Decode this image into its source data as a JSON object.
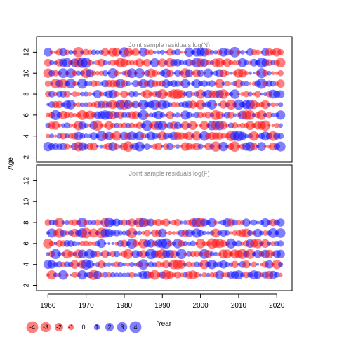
{
  "chart_data": {
    "type": "scatter",
    "subtype": "bubble-residuals",
    "xlabel": "Year",
    "ylabel": "Age",
    "xlim": [
      1957,
      2024
    ],
    "ylim": [
      1.5,
      13.5
    ],
    "xticks": [
      1960,
      1970,
      1980,
      1990,
      2000,
      2010,
      2020
    ],
    "yticks": [
      2,
      4,
      6,
      8,
      10,
      12
    ],
    "colors": {
      "negative": "#ff0000",
      "positive": "#0000ff"
    },
    "panels": [
      {
        "title": "Joint sample residuals log(N)",
        "years": [
          1960,
          2021
        ],
        "ages": [
          3,
          12
        ],
        "note": "one residual bubble per year and age (3-12), years 1960-2021; red = negative, blue = positive, area proportional to |residual|"
      },
      {
        "title": "Joint sample residuals log(F)",
        "years": [
          1960,
          2021
        ],
        "ages": [
          3,
          8
        ],
        "note": "one residual bubble per year and age (3-8), years 1960-2021; red = negative, blue = positive, area proportional to |residual|"
      }
    ],
    "legend": {
      "placement": "bottom-left",
      "entries": [
        "-4",
        "-3",
        "-2",
        "-1",
        "0",
        "1",
        "2",
        "3",
        "4"
      ],
      "values": [
        -4,
        -3,
        -2,
        -1,
        0,
        1,
        2,
        3,
        4
      ]
    }
  }
}
